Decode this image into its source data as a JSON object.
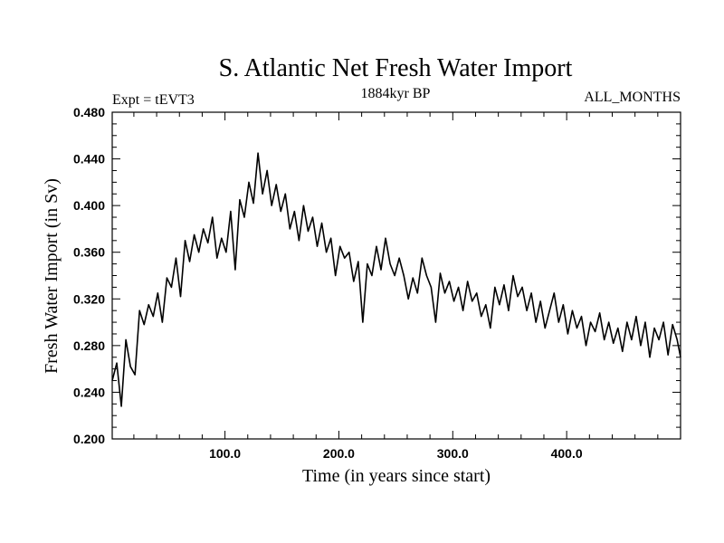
{
  "chart_data": {
    "type": "line",
    "title": "S. Atlantic Net Fresh Water Import",
    "subtitle": "1884kyr BP",
    "left_label": "Expt = tEVT3",
    "right_label": "ALL_MONTHS",
    "xlabel": "Time (in years since start)",
    "ylabel": "Fresh Water Import (in Sv)",
    "xlim": [
      1,
      500
    ],
    "ylim": [
      0.2,
      0.48
    ],
    "xticks": [
      100,
      200,
      300,
      400
    ],
    "xtick_labels": [
      "100.0",
      "200.0",
      "300.0",
      "400.0"
    ],
    "yticks": [
      0.2,
      0.24,
      0.28,
      0.32,
      0.36,
      0.4,
      0.44,
      0.48
    ],
    "ytick_labels": [
      "0.200",
      "0.240",
      "0.280",
      "0.320",
      "0.360",
      "0.400",
      "0.440",
      "0.480"
    ],
    "grid": false,
    "series": [
      {
        "name": "Fresh Water Import",
        "color": "#000000",
        "x": [
          1,
          5,
          9,
          13,
          17,
          21,
          25,
          29,
          33,
          37,
          41,
          45,
          49,
          53,
          57,
          61,
          65,
          69,
          73,
          77,
          81,
          85,
          89,
          93,
          97,
          101,
          105,
          109,
          113,
          117,
          121,
          125,
          129,
          133,
          137,
          141,
          145,
          149,
          153,
          157,
          161,
          165,
          169,
          173,
          177,
          181,
          185,
          189,
          193,
          197,
          201,
          205,
          209,
          213,
          217,
          221,
          225,
          229,
          233,
          237,
          241,
          245,
          249,
          253,
          257,
          261,
          265,
          269,
          273,
          277,
          281,
          285,
          289,
          293,
          297,
          301,
          305,
          309,
          313,
          317,
          321,
          325,
          329,
          333,
          337,
          341,
          345,
          349,
          353,
          357,
          361,
          365,
          369,
          373,
          377,
          381,
          385,
          389,
          393,
          397,
          401,
          405,
          409,
          413,
          417,
          421,
          425,
          429,
          433,
          437,
          441,
          445,
          449,
          453,
          457,
          461,
          465,
          469,
          473,
          477,
          481,
          485,
          489,
          493,
          497,
          500
        ],
        "values": [
          0.25,
          0.265,
          0.228,
          0.285,
          0.262,
          0.255,
          0.31,
          0.298,
          0.315,
          0.305,
          0.325,
          0.3,
          0.338,
          0.33,
          0.355,
          0.322,
          0.37,
          0.352,
          0.375,
          0.36,
          0.38,
          0.368,
          0.39,
          0.355,
          0.372,
          0.36,
          0.395,
          0.345,
          0.405,
          0.39,
          0.42,
          0.402,
          0.445,
          0.41,
          0.43,
          0.4,
          0.418,
          0.395,
          0.41,
          0.38,
          0.395,
          0.37,
          0.4,
          0.378,
          0.39,
          0.365,
          0.385,
          0.36,
          0.372,
          0.34,
          0.365,
          0.355,
          0.36,
          0.335,
          0.352,
          0.3,
          0.35,
          0.34,
          0.365,
          0.345,
          0.372,
          0.35,
          0.34,
          0.355,
          0.34,
          0.32,
          0.338,
          0.325,
          0.355,
          0.34,
          0.33,
          0.3,
          0.342,
          0.325,
          0.335,
          0.318,
          0.33,
          0.31,
          0.335,
          0.318,
          0.325,
          0.305,
          0.315,
          0.295,
          0.33,
          0.315,
          0.332,
          0.31,
          0.34,
          0.322,
          0.33,
          0.31,
          0.325,
          0.3,
          0.318,
          0.295,
          0.31,
          0.325,
          0.3,
          0.315,
          0.29,
          0.31,
          0.295,
          0.305,
          0.28,
          0.3,
          0.292,
          0.308,
          0.285,
          0.3,
          0.282,
          0.295,
          0.275,
          0.3,
          0.285,
          0.305,
          0.28,
          0.3,
          0.27,
          0.295,
          0.285,
          0.3,
          0.272,
          0.298,
          0.285,
          0.27
        ]
      }
    ]
  }
}
